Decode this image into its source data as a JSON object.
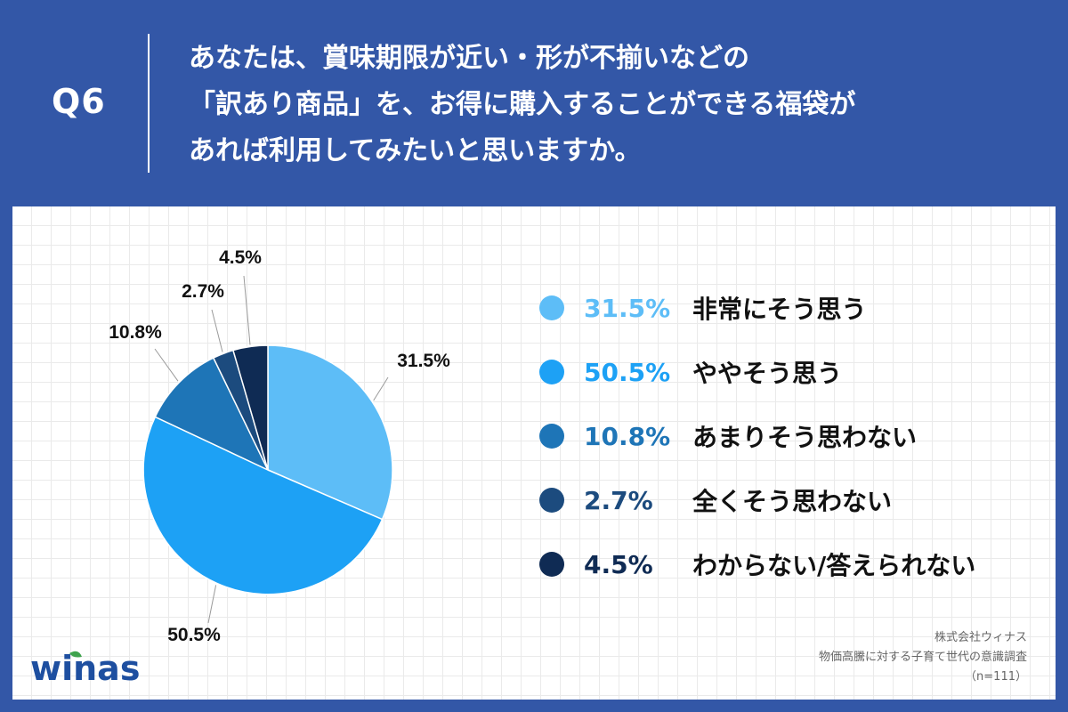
{
  "header": {
    "question_number": "Q6",
    "question_lines": [
      "あなたは、賞味期限が近い・形が不揃いなどの",
      "「訳あり商品」を、お得に購入することができる福袋が",
      "あれば利用してみたいと思いますか。"
    ]
  },
  "chart_data": {
    "type": "pie",
    "slices": [
      {
        "label": "非常にそう思う",
        "value": 31.5,
        "pct_text": "31.5%",
        "color": "#5dbdf7"
      },
      {
        "label": "ややそう思う",
        "value": 50.5,
        "pct_text": "50.5%",
        "color": "#1da1f5"
      },
      {
        "label": "あまりそう思わない",
        "value": 10.8,
        "pct_text": "10.8%",
        "color": "#1e75b7"
      },
      {
        "label": "全くそう思わない",
        "value": 2.7,
        "pct_text": "2.7%",
        "color": "#1c4b7e"
      },
      {
        "label": "わからない/答えられない",
        "value": 4.5,
        "pct_text": "4.5%",
        "color": "#0f2b54"
      }
    ],
    "legend_placement": "right",
    "grid": false
  },
  "footer": {
    "logo_text": "winas",
    "source_lines": [
      "株式会社ウィナス",
      "物価高騰に対する子育て世代の意識調査",
      "（n=111）"
    ]
  },
  "colors": {
    "background": "#3357a7",
    "logo": "#1e4fa0",
    "logo_accent": "#3fa34d"
  }
}
